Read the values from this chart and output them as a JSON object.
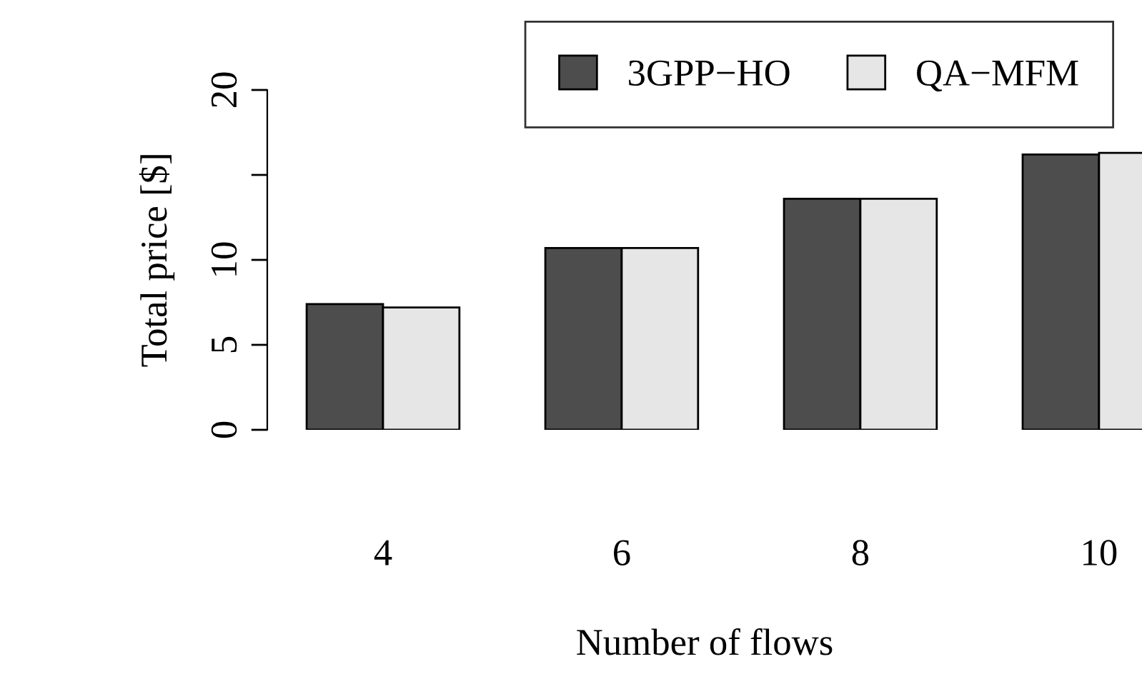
{
  "chart_data": {
    "type": "bar",
    "xlabel": "Number of flows",
    "ylabel": "Total price [$]",
    "categories": [
      "4",
      "6",
      "8",
      "10"
    ],
    "series": [
      {
        "name": "3GPP−HO",
        "color": "#4d4d4d",
        "values": [
          7.4,
          10.7,
          13.6,
          16.2
        ]
      },
      {
        "name": "QA−MFM",
        "color": "#e6e6e6",
        "values": [
          7.2,
          10.7,
          13.6,
          16.3
        ]
      }
    ],
    "ylim": [
      0,
      20
    ],
    "yticks": [
      0,
      5,
      10,
      {
        "value": 15,
        "label": null
      },
      20
    ],
    "legend": "top right",
    "grid": false
  }
}
